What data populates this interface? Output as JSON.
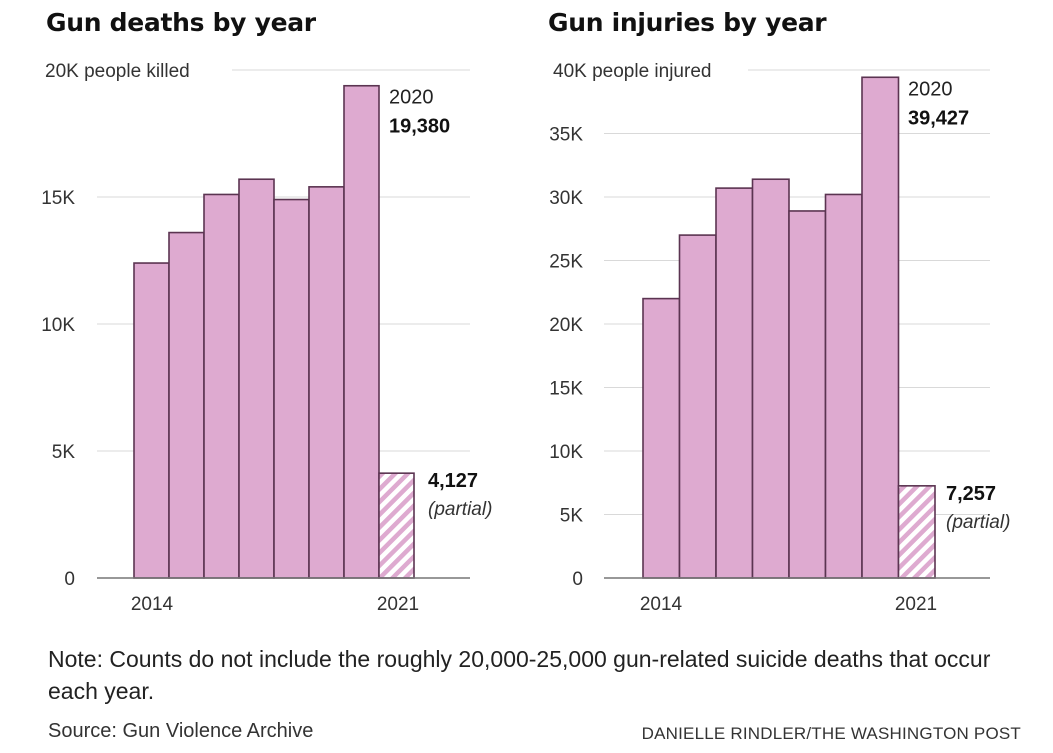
{
  "chart_data": [
    {
      "type": "bar",
      "title": "Gun deaths by year",
      "ylabel": "people killed",
      "categories": [
        "2014",
        "2015",
        "2016",
        "2017",
        "2018",
        "2019",
        "2020",
        "2021"
      ],
      "values": [
        12400,
        13600,
        15100,
        15700,
        14900,
        15400,
        19380,
        4127
      ],
      "partial_last": true,
      "ylim": [
        0,
        20000
      ],
      "yticks": [
        {
          "v": 0,
          "label": "0"
        },
        {
          "v": 5000,
          "label": "5K"
        },
        {
          "v": 10000,
          "label": "10K"
        },
        {
          "v": 15000,
          "label": "15K"
        },
        {
          "v": 20000,
          "label": "20K"
        }
      ],
      "top_tick_suffix": "people killed",
      "xticks": [
        {
          "i": 0,
          "label": "2014"
        },
        {
          "i": 7,
          "label": "2021"
        }
      ],
      "peak_annotation": {
        "year": "2020",
        "value": "19,380"
      },
      "partial_annotation": {
        "value": "4,127",
        "note": "(partial)"
      },
      "grid": true
    },
    {
      "type": "bar",
      "title": "Gun injuries by year",
      "ylabel": "people injured",
      "categories": [
        "2014",
        "2015",
        "2016",
        "2017",
        "2018",
        "2019",
        "2020",
        "2021"
      ],
      "values": [
        22000,
        27000,
        30700,
        31400,
        28900,
        30200,
        39427,
        7257
      ],
      "partial_last": true,
      "ylim": [
        0,
        40000
      ],
      "yticks": [
        {
          "v": 0,
          "label": "0"
        },
        {
          "v": 5000,
          "label": "5K"
        },
        {
          "v": 10000,
          "label": "10K"
        },
        {
          "v": 15000,
          "label": "15K"
        },
        {
          "v": 20000,
          "label": "20K"
        },
        {
          "v": 25000,
          "label": "25K"
        },
        {
          "v": 30000,
          "label": "30K"
        },
        {
          "v": 35000,
          "label": "35K"
        },
        {
          "v": 40000,
          "label": "40K"
        }
      ],
      "top_tick_suffix": "people injured",
      "xticks": [
        {
          "i": 0,
          "label": "2014"
        },
        {
          "i": 7,
          "label": "2021"
        }
      ],
      "peak_annotation": {
        "year": "2020",
        "value": "39,427"
      },
      "partial_annotation": {
        "value": "7,257",
        "note": "(partial)"
      },
      "grid": true
    }
  ],
  "colors": {
    "bar_fill": "#deaad0",
    "bar_stroke": "#5b3451",
    "grid": "#d9d9d9",
    "axis": "#777777"
  },
  "note": "Note: Counts do not include the roughly 20,000-25,000 gun-related suicide deaths that occur each year.",
  "source": "Source: Gun Violence Archive",
  "credit": "DANIELLE RINDLER/THE WASHINGTON POST"
}
